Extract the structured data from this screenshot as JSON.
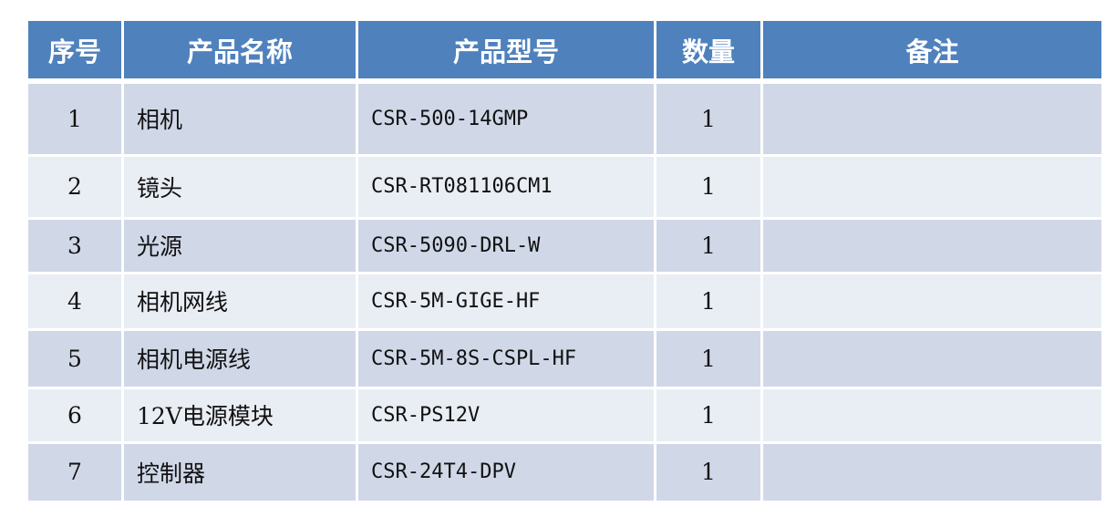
{
  "colors": {
    "header": "#4f81bd",
    "row_odd": "#d0d8e8",
    "row_even": "#e9edf4"
  },
  "headers": [
    "序号",
    "产品名称",
    "产品型号",
    "数量",
    "备注"
  ],
  "rows": [
    {
      "no": "1",
      "name": "相机",
      "model": "CSR-500-14GMP",
      "qty": "1",
      "note": ""
    },
    {
      "no": "2",
      "name": "镜头",
      "model": "CSR-RT081106CM1",
      "qty": "1",
      "note": ""
    },
    {
      "no": "3",
      "name": "光源",
      "model": "CSR-5090-DRL-W",
      "qty": "1",
      "note": ""
    },
    {
      "no": "4",
      "name": "相机网线",
      "model": "CSR-5M-GIGE-HF",
      "qty": "1",
      "note": ""
    },
    {
      "no": "5",
      "name": "相机电源线",
      "model": "CSR-5M-8S-CSPL-HF",
      "qty": "1",
      "note": ""
    },
    {
      "no": "6",
      "name": "12V电源模块",
      "model": "CSR-PS12V",
      "qty": "1",
      "note": ""
    },
    {
      "no": "7",
      "name": "控制器",
      "model": "CSR-24T4-DPV",
      "qty": "1",
      "note": ""
    }
  ]
}
